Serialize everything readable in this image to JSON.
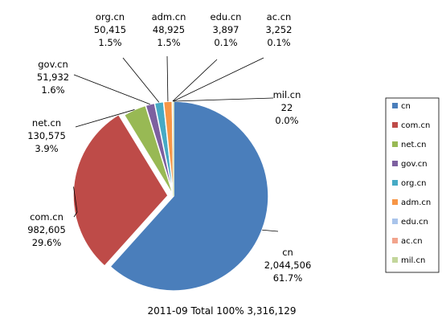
{
  "chart_data": {
    "type": "pie",
    "title": "2011-09  Total 100%  3,316,129",
    "slices": [
      {
        "name": "cn",
        "count": "2,044,506",
        "value": 2044506,
        "pct": "61.7%",
        "color": "#4A7EBB",
        "label_pos": "right-bottom",
        "exploded": false
      },
      {
        "name": "com.cn",
        "count": "982,605",
        "value": 982605,
        "pct": "29.6%",
        "color": "#BE4B48",
        "label_pos": "left-bottom",
        "exploded": true
      },
      {
        "name": "net.cn",
        "count": "130,575",
        "value": 130575,
        "pct": "3.9%",
        "color": "#98B954",
        "label_pos": "left",
        "exploded": false
      },
      {
        "name": "gov.cn",
        "count": "51,932",
        "value": 51932,
        "pct": "1.6%",
        "color": "#7D60A0",
        "label_pos": "top-left",
        "exploded": false
      },
      {
        "name": "org.cn",
        "count": "50,415",
        "value": 50415,
        "pct": "1.5%",
        "color": "#46AAC5",
        "label_pos": "top",
        "exploded": false
      },
      {
        "name": "adm.cn",
        "count": "48,925",
        "value": 48925,
        "pct": "1.5%",
        "color": "#F79646",
        "label_pos": "top",
        "exploded": false
      },
      {
        "name": "edu.cn",
        "count": "3,897",
        "value": 3897,
        "pct": "0.1%",
        "color": "#A9C4EB",
        "label_pos": "top",
        "exploded": false
      },
      {
        "name": "ac.cn",
        "count": "3,252",
        "value": 3252,
        "pct": "0.1%",
        "color": "#F2A48C",
        "label_pos": "top",
        "exploded": false
      },
      {
        "name": "mil.cn",
        "count": "22",
        "value": 22,
        "pct": "0.0%",
        "color": "#C3D69B",
        "label_pos": "right",
        "exploded": false
      }
    ],
    "legend": {
      "position": "right"
    }
  }
}
